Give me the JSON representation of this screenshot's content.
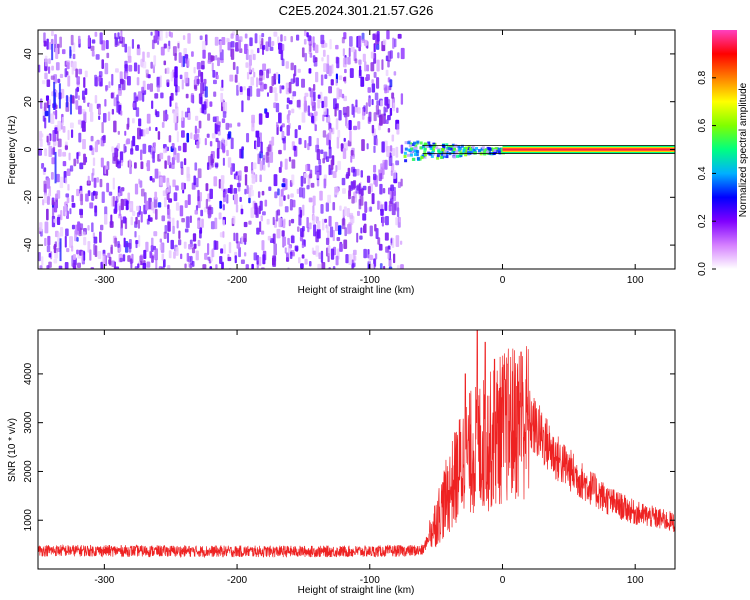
{
  "title": "C2E5.2024.301.21.57.G26",
  "chart_data": [
    {
      "type": "heatmap",
      "xlabel": "Height of straight line (km)",
      "ylabel": "Frequency (Hz)",
      "xlim": [
        -350,
        130
      ],
      "ylim": [
        -50,
        50
      ],
      "xticks": [
        -300,
        -200,
        -100,
        0,
        100
      ],
      "yticks": [
        -40,
        -20,
        0,
        20,
        40
      ],
      "noise_region_x": [
        -350,
        -75
      ],
      "signal_region_x": [
        -75,
        130
      ],
      "signal_center_freq": 0,
      "colorbar": {
        "label": "Normalized spectral amplitude",
        "range": [
          0,
          1
        ],
        "ticks": [
          0.0,
          0.2,
          0.4,
          0.6,
          0.8
        ],
        "colormap": [
          "#ffffff",
          "#d580ff",
          "#8000ff",
          "#0000ff",
          "#00b0ff",
          "#00ff80",
          "#80ff00",
          "#ffff00",
          "#ff8000",
          "#ff0000",
          "#ff40c0"
        ]
      }
    },
    {
      "type": "line",
      "xlabel": "Height of straight line (km)",
      "ylabel": "SNR (10 * v/v)",
      "xlim": [
        -350,
        130
      ],
      "ylim": [
        0,
        4900
      ],
      "xticks": [
        -300,
        -200,
        -100,
        0,
        100
      ],
      "yticks": [
        1000,
        2000,
        3000,
        4000
      ],
      "color": "#ee2222",
      "envelope": [
        {
          "x": -350,
          "y": 380
        },
        {
          "x": -200,
          "y": 360
        },
        {
          "x": -100,
          "y": 360
        },
        {
          "x": -60,
          "y": 380
        },
        {
          "x": -50,
          "y": 1000
        },
        {
          "x": -40,
          "y": 1600
        },
        {
          "x": -30,
          "y": 2200
        },
        {
          "x": -20,
          "y": 2500
        },
        {
          "x": -10,
          "y": 2600
        },
        {
          "x": 0,
          "y": 2900
        },
        {
          "x": 10,
          "y": 3000
        },
        {
          "x": 20,
          "y": 3050
        },
        {
          "x": 30,
          "y": 2700
        },
        {
          "x": 40,
          "y": 2300
        },
        {
          "x": 60,
          "y": 1800
        },
        {
          "x": 80,
          "y": 1400
        },
        {
          "x": 100,
          "y": 1150
        },
        {
          "x": 130,
          "y": 950
        }
      ],
      "spikes": [
        {
          "x": -28,
          "y": 4000
        },
        {
          "x": -19,
          "y": 4900
        },
        {
          "x": -13,
          "y": 4650
        },
        {
          "x": -6,
          "y": 4300
        },
        {
          "x": 4,
          "y": 4200
        },
        {
          "x": 14,
          "y": 4450
        }
      ]
    }
  ]
}
